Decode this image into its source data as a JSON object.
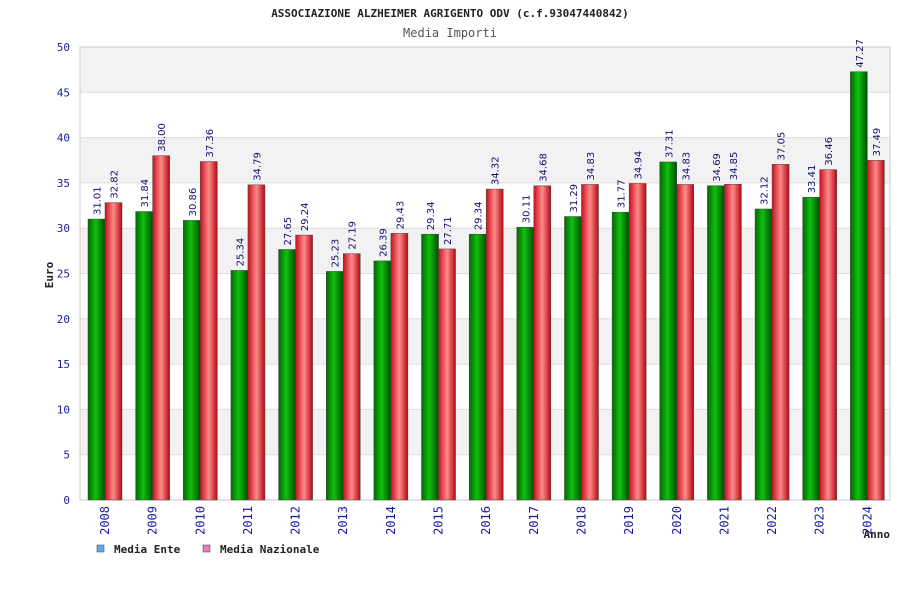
{
  "chart_data": {
    "type": "bar",
    "title": "ASSOCIAZIONE ALZHEIMER AGRIGENTO ODV (c.f.93047440842)",
    "subtitle": "Media Importi",
    "xlabel": "Anno",
    "ylabel": "Euro",
    "ylim": [
      0,
      50
    ],
    "yticks": [
      0,
      5,
      10,
      15,
      20,
      25,
      30,
      35,
      40,
      45,
      50
    ],
    "grid": true,
    "legend_position": "bottom-left",
    "categories": [
      "2008",
      "2009",
      "2010",
      "2011",
      "2012",
      "2013",
      "2014",
      "2015",
      "2016",
      "2017",
      "2018",
      "2019",
      "2020",
      "2021",
      "2022",
      "2023",
      "2024"
    ],
    "series": [
      {
        "name": "Media Ente",
        "color": "#00b000",
        "legend_color": "#5fa8e8",
        "values": [
          31.01,
          31.84,
          30.86,
          25.34,
          27.65,
          25.23,
          26.39,
          29.34,
          29.34,
          30.11,
          31.29,
          31.77,
          37.31,
          34.69,
          32.12,
          33.41,
          47.27
        ],
        "labels": [
          "31.01",
          "31.84",
          "30.86",
          "25.34",
          "27.65",
          "25.23",
          "26.39",
          "29.34",
          "29.34",
          "30.11",
          "31.29",
          "31.77",
          "37.31",
          "34.69",
          "32.12",
          "33.41",
          "47.27"
        ]
      },
      {
        "name": "Media Nazionale",
        "color": "#e8323a",
        "legend_color": "#e87cb4",
        "values": [
          32.82,
          38.0,
          37.36,
          34.79,
          29.24,
          27.19,
          29.43,
          27.71,
          34.32,
          34.68,
          34.83,
          34.94,
          34.83,
          34.85,
          37.05,
          36.46,
          37.49
        ],
        "labels": [
          "32.82",
          "38.00",
          "37.36",
          "34.79",
          "29.24",
          "27.19",
          "29.43",
          "27.71",
          "34.32",
          "34.68",
          "34.83",
          "34.94",
          "34.83",
          "34.85",
          "37.05",
          "36.46",
          "37.49"
        ]
      }
    ]
  }
}
